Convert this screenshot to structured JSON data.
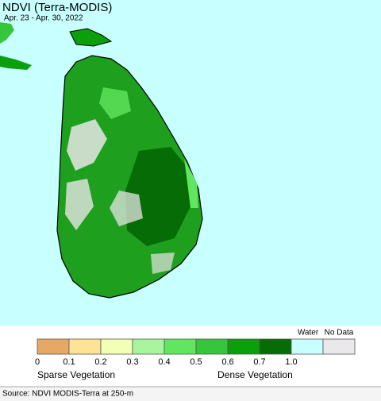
{
  "header": {
    "title": "NDVI (Terra-MODIS)",
    "subtitle": "Apr. 23 - Apr. 30, 2022"
  },
  "legend": {
    "colors": [
      "#e5a965",
      "#fde396",
      "#f4ffb6",
      "#a8f5a0",
      "#62e65f",
      "#35c63b",
      "#0c9f0c",
      "#066c06",
      "#c8ffff",
      "#eae8ea"
    ],
    "ticks": [
      "0",
      "0.1",
      "0.2",
      "0.3",
      "0.4",
      "0.5",
      "0.6",
      "0.7",
      "1.0"
    ],
    "water_label": "Water",
    "nodata_label": "No Data",
    "sparse_label": "Sparse Vegetation",
    "dense_label": "Dense Vegetation"
  },
  "source": "Source: NDVI MODIS-Terra at 250-m"
}
